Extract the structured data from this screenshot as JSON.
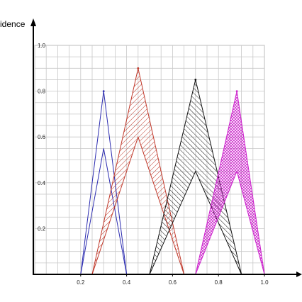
{
  "chart_data": {
    "type": "area",
    "title": "",
    "ylabel": "idence",
    "xlabel": "",
    "xlim": [
      0,
      1.0
    ],
    "ylim": [
      0,
      1.0
    ],
    "grid": true,
    "x_ticks": [
      {
        "value": 0.2,
        "label": "0.2"
      },
      {
        "value": 0.4,
        "label": "0.4"
      },
      {
        "value": 0.6,
        "label": "0.6"
      },
      {
        "value": 0.8,
        "label": "0.8"
      },
      {
        "value": 1.0,
        "label": "1.0"
      }
    ],
    "y_ticks": [
      {
        "value": 0.2,
        "label": "0.2"
      },
      {
        "value": 0.4,
        "label": "0.4"
      },
      {
        "value": 0.6,
        "label": "0.6"
      },
      {
        "value": 0.8,
        "label": "0.8"
      },
      {
        "value": 1.0,
        "label": "1.0"
      }
    ],
    "series": [
      {
        "color": "#2b2bb0",
        "fill": "none",
        "upper": {
          "left": 0.2,
          "peak_x": 0.3,
          "peak_y": 0.8,
          "right": 0.4
        },
        "lower": {
          "left": 0.2,
          "peak_x": 0.3,
          "peak_y": 0.55,
          "right": 0.4
        }
      },
      {
        "color": "#c0392b",
        "fill": "hatch",
        "upper": {
          "left": 0.25,
          "peak_x": 0.45,
          "peak_y": 0.9,
          "right": 0.65
        },
        "lower": {
          "left": 0.25,
          "peak_x": 0.45,
          "peak_y": 0.6,
          "right": 0.65
        }
      },
      {
        "color": "#111111",
        "fill": "hatch",
        "upper": {
          "left": 0.5,
          "peak_x": 0.7,
          "peak_y": 0.85,
          "right": 0.9
        },
        "lower": {
          "left": 0.5,
          "peak_x": 0.7,
          "peak_y": 0.45,
          "right": 0.9
        }
      },
      {
        "color": "#cc22cc",
        "fill": "crosshatch",
        "upper": {
          "left": 0.7,
          "peak_x": 0.88,
          "peak_y": 0.8,
          "right": 1.0
        },
        "lower": {
          "left": 0.7,
          "peak_x": 0.88,
          "peak_y": 0.45,
          "right": 1.0
        }
      }
    ]
  }
}
